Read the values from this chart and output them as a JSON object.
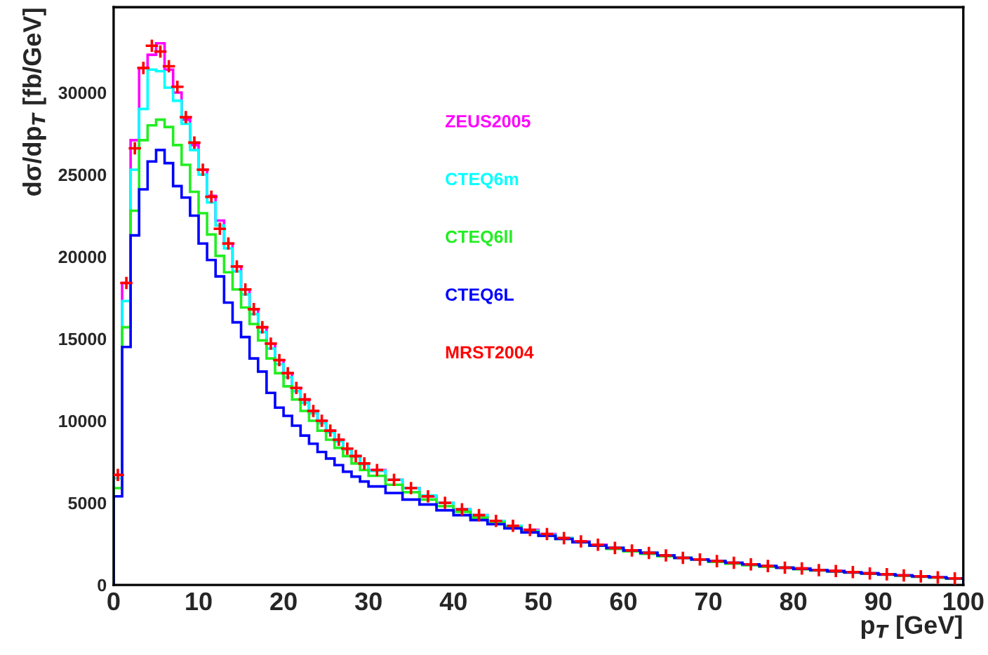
{
  "chart_data": {
    "type": "histogram",
    "xlabel": "p$_{T}$ [GeV]",
    "ylabel": "dσ/dp$_{T}$ [fb/GeV]",
    "bins": [
      0,
      1,
      2,
      3,
      4,
      5,
      6,
      7,
      8,
      9,
      10,
      11,
      12,
      13,
      14,
      15,
      16,
      17,
      18,
      19,
      20,
      21,
      22,
      23,
      24,
      25,
      26,
      27,
      28,
      29,
      30,
      32,
      34,
      36,
      38,
      40,
      42,
      44,
      46,
      48,
      50,
      52,
      54,
      56,
      58,
      60,
      62,
      64,
      66,
      68,
      70,
      72,
      74,
      76,
      78,
      80,
      82,
      84,
      86,
      88,
      90,
      92,
      94,
      96,
      98,
      100
    ],
    "xlim": [
      0,
      100
    ],
    "xticks": [
      0,
      10,
      20,
      30,
      40,
      50,
      60,
      70,
      80,
      90,
      100
    ],
    "ylim": [
      0,
      35200
    ],
    "yticks": [
      0,
      5000,
      10000,
      15000,
      20000,
      25000,
      30000
    ],
    "grid": false,
    "series": [
      {
        "name": "ZEUS2005",
        "color": "#ff00ff",
        "values": [
          6700,
          18400,
          27100,
          31500,
          32300,
          33000,
          31400,
          30000,
          28350,
          26800,
          25300,
          23700,
          22200,
          20800,
          19400,
          18000,
          16800,
          15700,
          14700,
          13700,
          12900,
          12000,
          11300,
          10600,
          10000,
          9400,
          8850,
          8300,
          7850,
          7400,
          7000,
          6400,
          5900,
          5400,
          5000,
          4600,
          4250,
          3900,
          3600,
          3350,
          3100,
          2850,
          2650,
          2450,
          2250,
          2100,
          1950,
          1800,
          1650,
          1550,
          1450,
          1350,
          1250,
          1150,
          1050,
          1000,
          900,
          850,
          780,
          700,
          650,
          580,
          520,
          460,
          400
        ]
      },
      {
        "name": "CTEQ6m",
        "color": "#00ffff",
        "values": [
          6500,
          17300,
          25300,
          29000,
          31400,
          31300,
          30300,
          29500,
          28100,
          26500,
          25000,
          23300,
          21900,
          20500,
          19100,
          17700,
          16500,
          15400,
          14400,
          13450,
          12650,
          11800,
          11100,
          10450,
          9850,
          9300,
          8750,
          8250,
          7800,
          7350,
          6950,
          6400,
          5900,
          5450,
          5000,
          4600,
          4250,
          3900,
          3600,
          3300,
          3050,
          2850,
          2600,
          2400,
          2250,
          2100,
          1950,
          1800,
          1650,
          1550,
          1450,
          1350,
          1250,
          1150,
          1050,
          980,
          900,
          830,
          760,
          700,
          640,
          580,
          520,
          460,
          400
        ]
      },
      {
        "name": "CTEQ6ll",
        "color": "#22ee22",
        "values": [
          5900,
          15700,
          22800,
          27100,
          28000,
          28350,
          27900,
          26800,
          25600,
          23950,
          22650,
          21350,
          20050,
          19050,
          18000,
          16900,
          15900,
          14900,
          13800,
          12900,
          12100,
          11300,
          10600,
          10000,
          9400,
          8850,
          8350,
          7850,
          7400,
          7000,
          6650,
          6100,
          5650,
          5200,
          4800,
          4450,
          4100,
          3800,
          3500,
          3250,
          3000,
          2800,
          2600,
          2400,
          2200,
          2050,
          1900,
          1750,
          1650,
          1550,
          1400,
          1300,
          1200,
          1100,
          1050,
          960,
          880,
          820,
          750,
          690,
          620,
          560,
          500,
          440,
          380
        ]
      },
      {
        "name": "CTEQ6L",
        "color": "#0000ff",
        "values": [
          5400,
          14500,
          21300,
          24100,
          25800,
          26500,
          25700,
          24300,
          23600,
          22500,
          20800,
          19800,
          18800,
          17200,
          16000,
          15100,
          13800,
          13000,
          11700,
          10800,
          10300,
          9700,
          9100,
          8600,
          8100,
          7700,
          7300,
          6900,
          6600,
          6300,
          6000,
          5600,
          5200,
          4900,
          4550,
          4250,
          3950,
          3700,
          3450,
          3200,
          3000,
          2800,
          2600,
          2400,
          2250,
          2100,
          1950,
          1800,
          1650,
          1550,
          1450,
          1350,
          1250,
          1150,
          1050,
          980,
          900,
          830,
          760,
          700,
          640,
          580,
          520,
          460,
          400
        ]
      },
      {
        "name": "MRST2004",
        "color": "#ff0000",
        "type": "scatter",
        "marker": "cross",
        "x": [
          0.5,
          1.5,
          2.5,
          3.5,
          4.5,
          5.5,
          6.5,
          7.5,
          8.5,
          9.5,
          10.5,
          11.5,
          12.5,
          13.5,
          14.5,
          15.5,
          16.5,
          17.5,
          18.5,
          19.5,
          20.5,
          21.5,
          22.5,
          23.5,
          24.5,
          25.5,
          26.5,
          27.5,
          28.5,
          29.5,
          31,
          33,
          35,
          37,
          39,
          41,
          43,
          45,
          47,
          49,
          51,
          53,
          55,
          57,
          59,
          61,
          63,
          65,
          67,
          69,
          71,
          73,
          75,
          77,
          79,
          81,
          83,
          85,
          87,
          89,
          91,
          93,
          95,
          97,
          99
        ],
        "values": [
          6700,
          18400,
          26600,
          31500,
          32850,
          32500,
          31600,
          30350,
          28500,
          26950,
          25300,
          23650,
          21700,
          20800,
          19400,
          18000,
          16800,
          15700,
          14700,
          13700,
          12900,
          12000,
          11300,
          10600,
          10000,
          9400,
          8850,
          8300,
          7850,
          7400,
          7000,
          6400,
          5900,
          5400,
          5000,
          4600,
          4250,
          3900,
          3600,
          3350,
          3100,
          2850,
          2650,
          2450,
          2250,
          2100,
          1950,
          1800,
          1650,
          1550,
          1450,
          1350,
          1250,
          1150,
          1050,
          1000,
          900,
          850,
          780,
          700,
          650,
          580,
          520,
          460,
          400
        ]
      }
    ]
  }
}
